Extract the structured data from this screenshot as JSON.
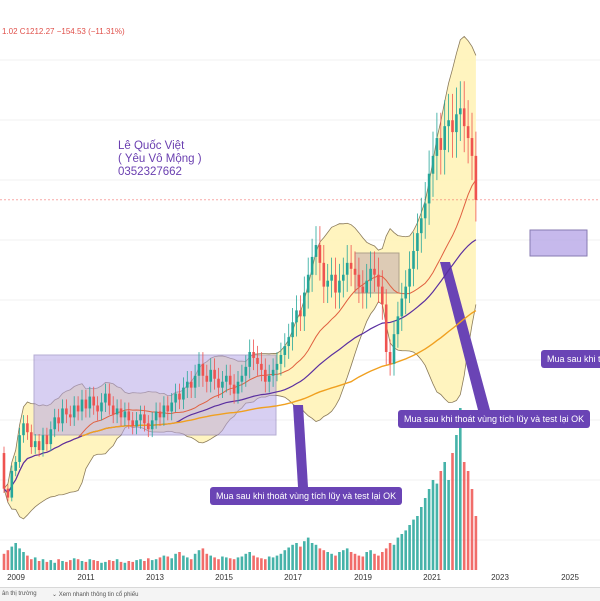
{
  "header": {
    "ohlc_text": "1.02  C1212.27  −154.53 (−11.31%)"
  },
  "author": {
    "name": "Lê Quốc Việt",
    "nickname": "( Yêu Vô Mộng )",
    "phone": "0352327662"
  },
  "callouts": [
    "Mua sau khi thoát vùng tích lũy và test lại OK",
    "Mua sau khi thoát vùng tích lũy và test lại OK",
    "Mua sau khi t"
  ],
  "bottom_bar": {
    "tab1": "ân thị trường",
    "tab2": "Xem nhanh thông tin cổ phiếu"
  },
  "colors": {
    "up": "#26a69a",
    "down": "#ef5350",
    "band_fill": "#fff3b8",
    "band_line": "#8a7a5a",
    "ma20": "#e06040",
    "ma50": "#5a2fa0",
    "ma200": "#f0a020",
    "accum_box": "#b8a8e8",
    "callout": "#6a44b5"
  },
  "chart_data": {
    "type": "candlestick",
    "interval": "monthly",
    "x_ticks": [
      "2009",
      "2011",
      "2013",
      "2015",
      "2017",
      "2019",
      "2021",
      "2023",
      "2025"
    ],
    "close_start": 360,
    "close": [
      240,
      210,
      300,
      330,
      420,
      460,
      430,
      380,
      400,
      370,
      420,
      390,
      440,
      480,
      460,
      510,
      490,
      480,
      520,
      500,
      540,
      510,
      550,
      520,
      500,
      530,
      560,
      520,
      490,
      510,
      480,
      500,
      470,
      450,
      470,
      490,
      460,
      440,
      470,
      500,
      480,
      520,
      500,
      530,
      560,
      540,
      580,
      600,
      580,
      620,
      660,
      620,
      600,
      640,
      610,
      580,
      600,
      620,
      590,
      560,
      600,
      620,
      650,
      700,
      680,
      660,
      640,
      600,
      620,
      640,
      660,
      690,
      720,
      750,
      800,
      840,
      820,
      900,
      960,
      1020,
      1060,
      1000,
      920,
      940,
      960,
      900,
      940,
      960,
      1000,
      980,
      960,
      920,
      900,
      940,
      980,
      960,
      920,
      860,
      700,
      660,
      760,
      820,
      880,
      920,
      980,
      1040,
      1100,
      1150,
      1200,
      1300,
      1360,
      1420,
      1380,
      1460,
      1480,
      1440,
      1500,
      1520,
      1460,
      1420,
      1360,
      1212
    ],
    "volume": [
      18,
      22,
      26,
      30,
      24,
      20,
      16,
      12,
      14,
      10,
      12,
      9,
      11,
      8,
      12,
      10,
      9,
      11,
      13,
      12,
      10,
      9,
      12,
      11,
      10,
      8,
      9,
      11,
      10,
      12,
      9,
      8,
      10,
      9,
      11,
      12,
      10,
      13,
      11,
      12,
      14,
      16,
      15,
      13,
      18,
      20,
      16,
      14,
      12,
      18,
      22,
      24,
      18,
      16,
      14,
      12,
      15,
      14,
      13,
      12,
      14,
      15,
      18,
      20,
      16,
      14,
      13,
      12,
      15,
      14,
      16,
      18,
      22,
      25,
      28,
      30,
      26,
      32,
      36,
      30,
      28,
      24,
      22,
      20,
      18,
      16,
      20,
      22,
      24,
      20,
      18,
      16,
      15,
      20,
      22,
      18,
      16,
      20,
      24,
      30,
      28,
      36,
      40,
      44,
      50,
      56,
      60,
      70,
      80,
      90,
      100,
      96,
      110,
      120,
      100,
      130,
      150,
      180,
      120,
      110,
      90,
      60
    ],
    "indicators": [
      "Bollinger Bands",
      "MA20",
      "MA50",
      "MA200"
    ]
  }
}
